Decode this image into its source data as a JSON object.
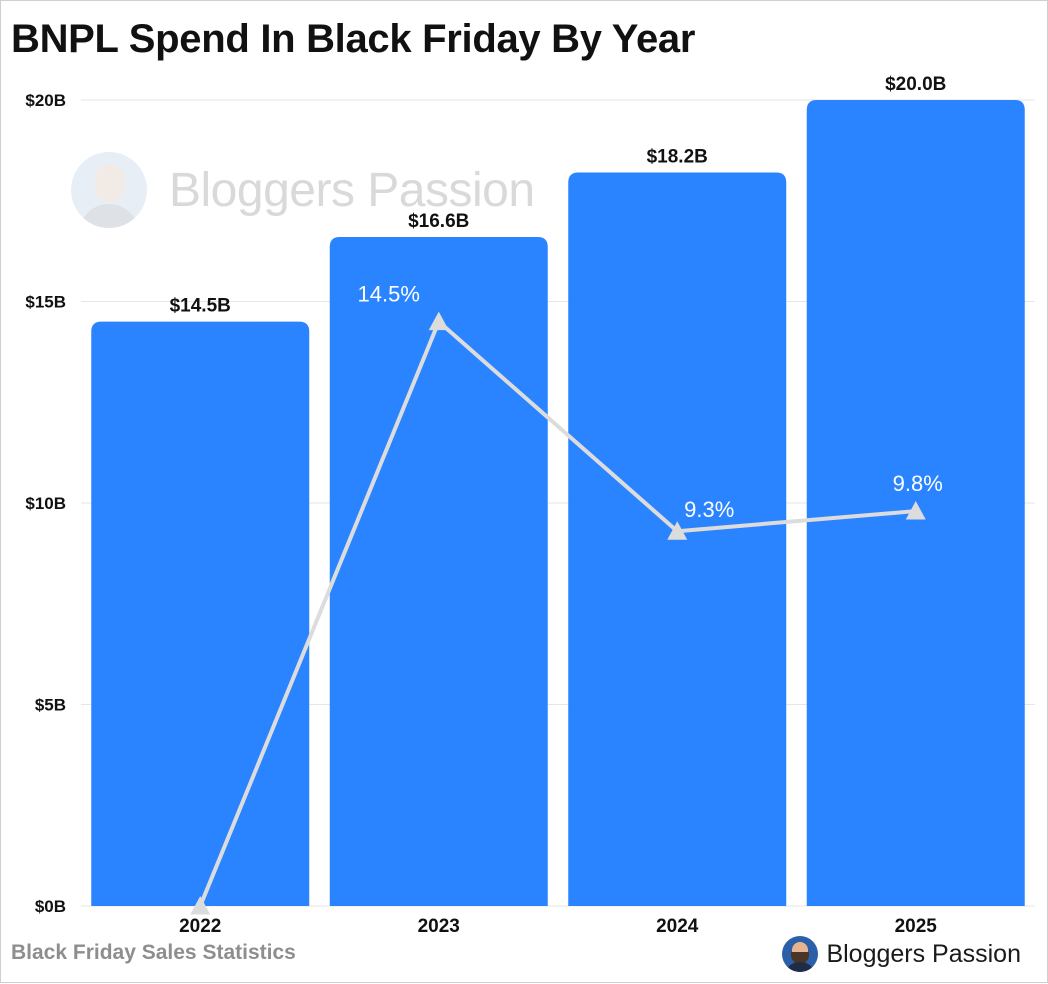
{
  "title": "BNPL Spend In Black Friday By Year",
  "footer": {
    "source_label": "Black Friday Sales Statistics",
    "brand_name": "Bloggers Passion"
  },
  "watermark": {
    "text": "Bloggers Passion"
  },
  "colors": {
    "bar": "#2b84ff",
    "line": "#dcdcdc",
    "grid": "#e6e6e6",
    "text": "#111111",
    "footer_text": "#8e8e8e"
  },
  "chart_data": {
    "type": "bar",
    "categories": [
      "2022",
      "2023",
      "2024",
      "2025"
    ],
    "series": [
      {
        "type": "bar",
        "values": [
          14.5,
          16.6,
          18.2,
          20.0
        ],
        "data_labels": [
          "$14.5B",
          "$16.6B",
          "$18.2B",
          "$20.0B"
        ]
      },
      {
        "type": "line",
        "marker": "triangle",
        "values": [
          null,
          14.5,
          9.3,
          9.8
        ],
        "data_labels": [
          "",
          "14.5%",
          "9.3%",
          "9.8%"
        ]
      }
    ],
    "y_ticks": [
      {
        "value": 0,
        "label": "$0B"
      },
      {
        "value": 5,
        "label": "$5B"
      },
      {
        "value": 10,
        "label": "$10B"
      },
      {
        "value": 15,
        "label": "$15B"
      },
      {
        "value": 20,
        "label": "$20B"
      }
    ],
    "ylim": [
      0,
      20
    ],
    "grid": true,
    "legend": "none",
    "xlabel": "",
    "ylabel": ""
  }
}
